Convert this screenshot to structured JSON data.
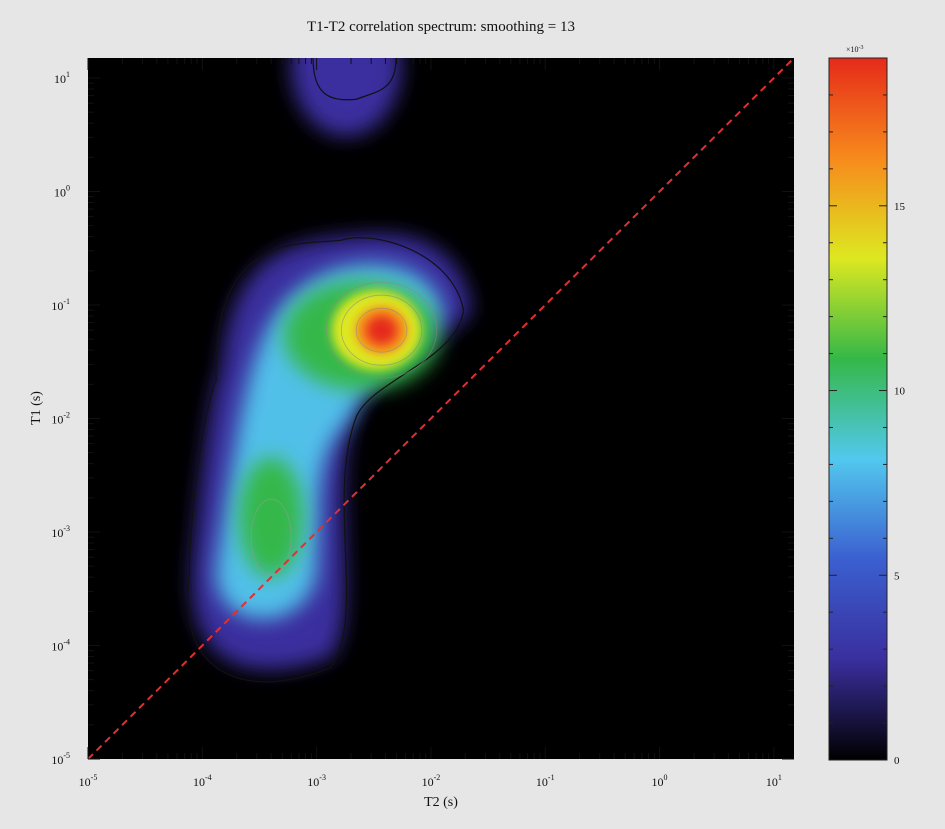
{
  "chart_data": {
    "type": "heatmap",
    "title": "T1-T2 correlation spectrum: smoothing = 13",
    "xlabel": "T2 (s)",
    "ylabel": "T1 (s)",
    "x_scale": "log",
    "y_scale": "log",
    "xlim": [
      1e-05,
      15
    ],
    "ylim": [
      1e-05,
      15
    ],
    "x_ticks": [
      {
        "value": 1e-05,
        "base": "10",
        "exp": "-5"
      },
      {
        "value": 0.0001,
        "base": "10",
        "exp": "-4"
      },
      {
        "value": 0.001,
        "base": "10",
        "exp": "-3"
      },
      {
        "value": 0.01,
        "base": "10",
        "exp": "-2"
      },
      {
        "value": 0.1,
        "base": "10",
        "exp": "-1"
      },
      {
        "value": 1,
        "base": "10",
        "exp": "0"
      },
      {
        "value": 10,
        "base": "10",
        "exp": "1"
      }
    ],
    "y_ticks": [
      {
        "value": 1e-05,
        "base": "10",
        "exp": "-5"
      },
      {
        "value": 0.0001,
        "base": "10",
        "exp": "-4"
      },
      {
        "value": 0.001,
        "base": "10",
        "exp": "-3"
      },
      {
        "value": 0.01,
        "base": "10",
        "exp": "-2"
      },
      {
        "value": 0.1,
        "base": "10",
        "exp": "-1"
      },
      {
        "value": 1,
        "base": "10",
        "exp": "0"
      },
      {
        "value": 10,
        "base": "10",
        "exp": "1"
      }
    ],
    "peaks": [
      {
        "t2": 0.0037,
        "t1": 0.06,
        "amplitude": 18
      },
      {
        "t2": 0.0004,
        "t1": 0.0009,
        "amplitude": 10
      },
      {
        "t2": 0.002,
        "t1": 14,
        "amplitude": 3.5
      }
    ],
    "diagonal": {
      "style": "dashed",
      "color": "#e03030",
      "relation": "T1 = T2"
    },
    "colorbar": {
      "min": 0,
      "max": 19,
      "ticks": [
        0,
        5,
        10,
        15
      ],
      "multiplier_base": "×10",
      "multiplier_exp": "-3",
      "colormap": [
        "#000000",
        "#3a2f9e",
        "#3b5fd0",
        "#52c8ee",
        "#34b848",
        "#dde820",
        "#f78a1c",
        "#e62a1a"
      ]
    },
    "grid": false
  }
}
